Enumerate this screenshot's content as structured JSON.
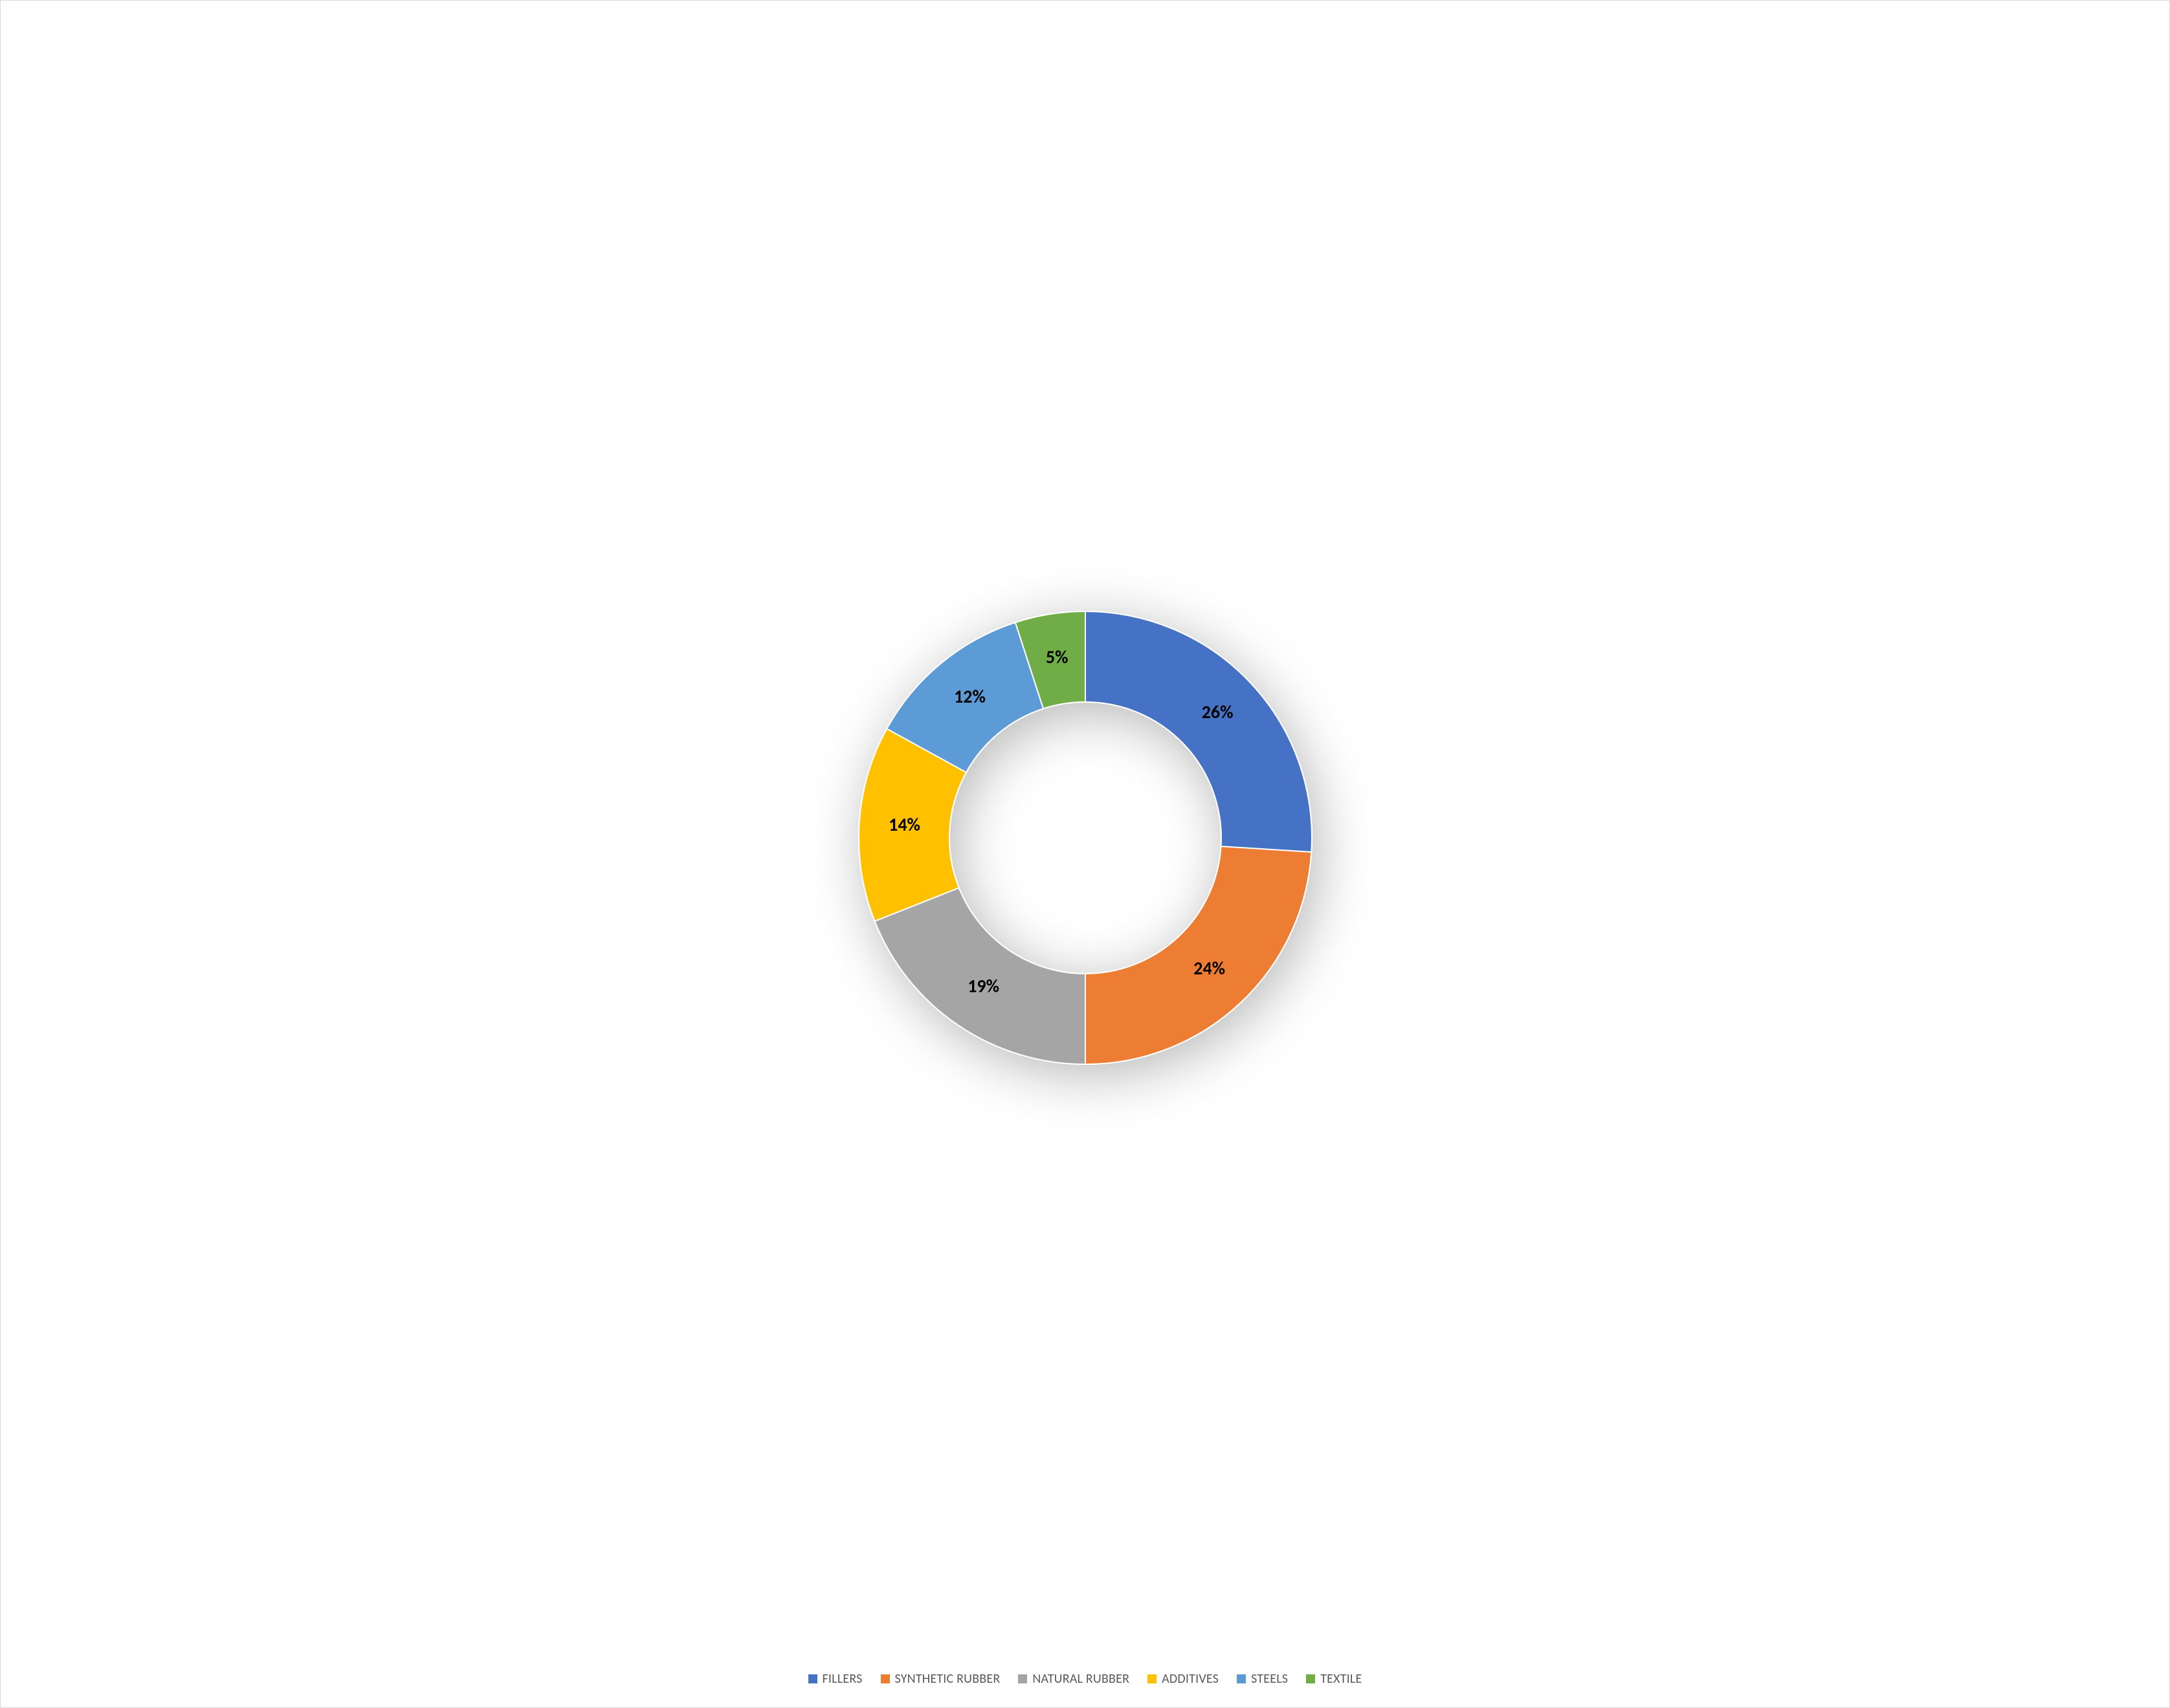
{
  "chart": {
    "type": "doughnut",
    "background_color": "#ffffff",
    "border_color": "#d9d9d9",
    "label_fontsize": 28,
    "label_fontweight": 700,
    "label_color": "#000000",
    "legend_fontsize": 20,
    "legend_color": "#595959",
    "outer_radius": 350,
    "inner_radius": 210,
    "shadow_color": "#000000",
    "shadow_opacity": 0.28,
    "shadow_blur": 42,
    "shadow_dx": 10,
    "shadow_dy": 16,
    "slices": [
      {
        "label": "FILLERS",
        "value": 26,
        "display": "26%",
        "color": "#4472c4"
      },
      {
        "label": "SYNTHETIC RUBBER",
        "value": 24,
        "display": "24%",
        "color": "#ed7d31"
      },
      {
        "label": "NATURAL RUBBER",
        "value": 19,
        "display": "19%",
        "color": "#a5a5a5"
      },
      {
        "label": "ADDITIVES",
        "value": 14,
        "display": "14%",
        "color": "#ffc000"
      },
      {
        "label": "STEELS",
        "value": 12,
        "display": "12%",
        "color": "#5b9bd5"
      },
      {
        "label": "TEXTILE",
        "value": 5,
        "display": "5%",
        "color": "#70ad47"
      }
    ]
  }
}
